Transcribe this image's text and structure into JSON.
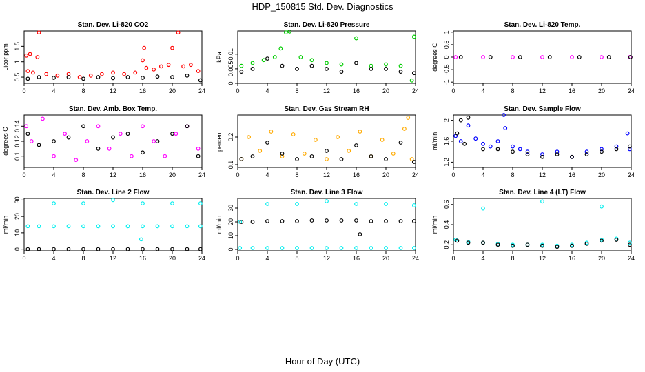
{
  "title": "HDP_150815  Std. Dev. Diagnostics",
  "xlabel": "Hour of Day (UTC)",
  "colors": {
    "co2": "#ff0000",
    "pressure": "#00cc00",
    "temp": "#ff00ff",
    "rh": "#ffaa00",
    "flow": "#0000ff",
    "line": "#00eeee",
    "primary": "#000000"
  },
  "chart_data": [
    {
      "type": "scatter",
      "title": "Stan. Dev. Li-820 CO2",
      "ylabel": "Licor ppm",
      "xlim": [
        0,
        24
      ],
      "ylim": [
        0.3,
        2.0
      ],
      "xticks": [
        0,
        4,
        8,
        12,
        16,
        20,
        24
      ],
      "yticks": [
        0.5,
        1.0,
        1.5
      ],
      "series": [
        {
          "color": "#ff0000",
          "x": [
            0.3,
            0.5,
            0.8,
            1.2,
            1.8,
            2.0,
            3.0,
            4.5,
            6.0,
            7.5,
            9.0,
            10.5,
            12.0,
            13.5,
            15.0,
            16.0,
            16.2,
            16.5,
            17.5,
            18.5,
            19.5,
            20.0,
            20.8,
            21.5,
            22.5,
            23.5
          ],
          "y": [
            1.2,
            0.7,
            1.25,
            0.65,
            1.15,
            1.95,
            0.6,
            0.55,
            0.6,
            0.5,
            0.55,
            0.6,
            0.65,
            0.6,
            0.65,
            1.05,
            1.45,
            0.8,
            0.75,
            0.85,
            0.9,
            1.45,
            1.95,
            0.85,
            0.9,
            0.7
          ]
        },
        {
          "color": "#000000",
          "x": [
            0.5,
            2.0,
            4.0,
            6.0,
            8.0,
            10.0,
            12.0,
            14.0,
            16.0,
            18.0,
            20.0,
            22.0,
            23.8
          ],
          "y": [
            0.45,
            0.5,
            0.48,
            0.5,
            0.45,
            0.5,
            0.47,
            0.5,
            0.48,
            0.52,
            0.5,
            0.55,
            0.4
          ]
        }
      ]
    },
    {
      "type": "scatter",
      "title": "Stan. Dev. Li-820 Pressure",
      "ylabel": "kPa",
      "xlim": [
        0,
        24
      ],
      "ylim": [
        0,
        0.018
      ],
      "xticks": [
        0,
        4,
        8,
        12,
        16,
        20,
        24
      ],
      "yticks": [
        0.0,
        0.005,
        0.01
      ],
      "series": [
        {
          "color": "#00cc00",
          "x": [
            0.5,
            2.0,
            3.5,
            5.0,
            5.8,
            6.5,
            7.0,
            8.5,
            10.0,
            12.0,
            14.0,
            16.0,
            18.0,
            20.0,
            22.0,
            23.5,
            23.8
          ],
          "y": [
            0.006,
            0.007,
            0.008,
            0.009,
            0.012,
            0.0175,
            0.0178,
            0.009,
            0.008,
            0.007,
            0.0065,
            0.0155,
            0.006,
            0.0065,
            0.006,
            0.001,
            0.016
          ]
        },
        {
          "color": "#000000",
          "x": [
            0.5,
            2.0,
            4.0,
            6.0,
            8.0,
            10.0,
            12.0,
            14.0,
            16.0,
            18.0,
            20.0,
            22.0,
            23.8
          ],
          "y": [
            0.004,
            0.005,
            0.0085,
            0.006,
            0.005,
            0.006,
            0.005,
            0.004,
            0.007,
            0.005,
            0.005,
            0.004,
            0.0035
          ]
        }
      ]
    },
    {
      "type": "scatter",
      "title": "Stan. Dev. Li-820 Temp.",
      "ylabel": "degrees C",
      "xlim": [
        0,
        24
      ],
      "ylim": [
        -1.05,
        1.05
      ],
      "xticks": [
        0,
        4,
        8,
        12,
        16,
        20,
        24
      ],
      "yticks": [
        -1.0,
        -0.5,
        0.0,
        0.5,
        1.0
      ],
      "series": [
        {
          "color": "#ff00ff",
          "x": [
            0.3,
            4.0,
            8.0,
            12.0,
            16.0,
            20.0,
            23.8
          ],
          "y": [
            0,
            0,
            0,
            0,
            0,
            0,
            0
          ]
        },
        {
          "color": "#000000",
          "x": [
            1.0,
            5.0,
            9.0,
            13.0,
            17.0,
            21.0,
            23.9
          ],
          "y": [
            0,
            0,
            0,
            0,
            0,
            0,
            0
          ]
        }
      ]
    },
    {
      "type": "scatter",
      "title": "Stan. Dev. Amb. Box Temp.",
      "ylabel": "degrees C",
      "xlim": [
        0,
        24
      ],
      "ylim": [
        0.085,
        0.155
      ],
      "xticks": [
        0,
        4,
        8,
        12,
        16,
        20,
        24
      ],
      "yticks": [
        0.1,
        0.12,
        0.14
      ],
      "series": [
        {
          "color": "#ff00ff",
          "x": [
            0.3,
            1.0,
            2.5,
            4.0,
            5.5,
            7.0,
            8.5,
            10.0,
            11.5,
            13.0,
            14.5,
            16.0,
            17.5,
            19.0,
            20.5,
            22.0,
            23.5
          ],
          "y": [
            0.14,
            0.12,
            0.15,
            0.1,
            0.13,
            0.095,
            0.12,
            0.14,
            0.11,
            0.13,
            0.1,
            0.14,
            0.12,
            0.1,
            0.13,
            0.14,
            0.11
          ]
        },
        {
          "color": "#000000",
          "x": [
            0.5,
            2.0,
            4.0,
            6.0,
            8.0,
            10.0,
            12.0,
            14.0,
            16.0,
            18.0,
            20.0,
            22.0,
            23.5
          ],
          "y": [
            0.13,
            0.115,
            0.12,
            0.125,
            0.14,
            0.11,
            0.125,
            0.13,
            0.105,
            0.12,
            0.13,
            0.14,
            0.1
          ]
        }
      ]
    },
    {
      "type": "scatter",
      "title": "Stan. Dev. Gas Stream RH",
      "ylabel": "percent",
      "xlim": [
        0,
        24
      ],
      "ylim": [
        0.09,
        0.28
      ],
      "xticks": [
        0,
        4,
        8,
        12,
        16,
        20,
        24
      ],
      "yticks": [
        0.1,
        0.2
      ],
      "series": [
        {
          "color": "#ffaa00",
          "x": [
            0.5,
            1.5,
            3.0,
            4.5,
            6.0,
            7.5,
            9.0,
            10.5,
            12.0,
            13.5,
            15.0,
            16.5,
            18.0,
            19.5,
            21.0,
            22.5,
            23.5,
            23.0
          ],
          "y": [
            0.12,
            0.2,
            0.15,
            0.22,
            0.13,
            0.21,
            0.14,
            0.19,
            0.12,
            0.2,
            0.15,
            0.22,
            0.13,
            0.19,
            0.14,
            0.23,
            0.12,
            0.27
          ]
        },
        {
          "color": "#000000",
          "x": [
            0.5,
            2.0,
            4.0,
            6.0,
            8.0,
            10.0,
            12.0,
            14.0,
            16.0,
            18.0,
            20.0,
            22.0,
            23.8
          ],
          "y": [
            0.12,
            0.13,
            0.18,
            0.14,
            0.12,
            0.13,
            0.15,
            0.12,
            0.17,
            0.13,
            0.12,
            0.18,
            0.11
          ]
        }
      ]
    },
    {
      "type": "scatter",
      "title": "Stan. Dev. Sample Flow",
      "ylabel": "ml/min",
      "xlim": [
        0,
        24
      ],
      "ylim": [
        1.1,
        2.1
      ],
      "xticks": [
        0,
        4,
        8,
        12,
        16,
        20,
        24
      ],
      "yticks": [
        1.2,
        1.6,
        2.0
      ],
      "series": [
        {
          "color": "#0000ff",
          "x": [
            0.3,
            1.0,
            2.0,
            3.0,
            4.0,
            5.0,
            6.0,
            6.8,
            7.0,
            8.0,
            9.0,
            10.0,
            12.0,
            14.0,
            16.0,
            18.0,
            20.0,
            22.0,
            23.5,
            23.8
          ],
          "y": [
            1.7,
            1.6,
            1.9,
            1.65,
            1.55,
            1.5,
            1.6,
            2.1,
            1.85,
            1.5,
            1.45,
            1.4,
            1.35,
            1.4,
            1.3,
            1.4,
            1.45,
            1.5,
            1.75,
            1.45
          ]
        },
        {
          "color": "#000000",
          "x": [
            0.5,
            1.0,
            1.5,
            2.0,
            4.0,
            6.0,
            8.0,
            10.0,
            12.0,
            14.0,
            16.0,
            18.0,
            20.0,
            22.0,
            23.8
          ],
          "y": [
            1.75,
            2.0,
            1.55,
            2.05,
            1.45,
            1.45,
            1.4,
            1.35,
            1.3,
            1.35,
            1.3,
            1.35,
            1.4,
            1.45,
            1.5
          ]
        }
      ]
    },
    {
      "type": "scatter",
      "title": "Stan. Dev. Line 2 Flow",
      "ylabel": "ml/min",
      "xlim": [
        0,
        24
      ],
      "ylim": [
        -1,
        31
      ],
      "xticks": [
        0,
        4,
        8,
        12,
        16,
        20,
        24
      ],
      "yticks": [
        0,
        10,
        20,
        30
      ],
      "series": [
        {
          "color": "#00eeee",
          "x": [
            0.5,
            2.0,
            4.0,
            6.0,
            8.0,
            10.0,
            12.0,
            14.0,
            15.8,
            16.0,
            18.0,
            20.0,
            22.0,
            23.8,
            4.0,
            8.0,
            12.0,
            16.0,
            20.0,
            23.8
          ],
          "y": [
            14,
            14,
            14,
            14,
            14,
            14,
            14,
            14,
            6,
            14,
            14,
            14,
            14,
            14,
            28,
            28,
            30,
            28,
            28,
            28
          ]
        },
        {
          "color": "#000000",
          "x": [
            0.5,
            2.0,
            4.0,
            6.0,
            8.0,
            10.0,
            12.0,
            14.0,
            16.0,
            18.0,
            20.0,
            22.0,
            23.8
          ],
          "y": [
            0,
            0,
            0,
            0,
            0,
            0,
            0,
            0,
            0,
            0,
            0,
            0,
            0
          ]
        }
      ]
    },
    {
      "type": "scatter",
      "title": "Stan. Dev. Line 3 Flow",
      "ylabel": "ml/min",
      "xlim": [
        0,
        24
      ],
      "ylim": [
        -1,
        37
      ],
      "xticks": [
        0,
        4,
        8,
        12,
        16,
        20,
        24
      ],
      "yticks": [
        0,
        10,
        20,
        30
      ],
      "series": [
        {
          "color": "#00eeee",
          "x": [
            0.3,
            2.0,
            4.0,
            6.0,
            8.0,
            10.0,
            12.0,
            14.0,
            16.0,
            18.0,
            20.0,
            22.0,
            23.8,
            0.3,
            4.0,
            8.0,
            12.0,
            16.0,
            20.0,
            23.8
          ],
          "y": [
            1,
            1,
            1,
            1,
            1,
            1,
            1,
            1,
            1,
            1,
            1,
            1,
            1,
            20,
            33,
            33,
            35,
            33,
            33,
            32
          ]
        },
        {
          "color": "#000000",
          "x": [
            0.5,
            2.0,
            4.0,
            6.0,
            8.0,
            10.0,
            12.0,
            14.0,
            16.0,
            16.5,
            18.0,
            20.0,
            22.0,
            23.8
          ],
          "y": [
            20,
            20,
            20.5,
            20.5,
            20.5,
            21,
            21,
            21,
            21,
            11,
            20.5,
            20.5,
            20.5,
            20.5
          ]
        }
      ]
    },
    {
      "type": "scatter",
      "title": "Stan. Dev. Line 4 (LT) Flow",
      "ylabel": "ml/min",
      "xlim": [
        0,
        24
      ],
      "ylim": [
        0.14,
        0.66
      ],
      "xticks": [
        0,
        4,
        8,
        12,
        16,
        20,
        24
      ],
      "yticks": [
        0.2,
        0.4,
        0.6
      ],
      "series": [
        {
          "color": "#00eeee",
          "x": [
            0.3,
            2.0,
            4.0,
            6.0,
            8.0,
            10.0,
            12.0,
            14.0,
            16.0,
            18.0,
            20.0,
            22.0,
            23.8,
            4.0,
            12.0,
            20.0
          ],
          "y": [
            0.25,
            0.23,
            0.22,
            0.21,
            0.2,
            0.2,
            0.2,
            0.19,
            0.2,
            0.22,
            0.25,
            0.26,
            0.22,
            0.56,
            0.63,
            0.58
          ]
        },
        {
          "color": "#000000",
          "x": [
            0.5,
            2.0,
            4.0,
            6.0,
            8.0,
            10.0,
            12.0,
            14.0,
            16.0,
            18.0,
            20.0,
            22.0,
            23.8
          ],
          "y": [
            0.24,
            0.22,
            0.22,
            0.2,
            0.19,
            0.2,
            0.19,
            0.18,
            0.19,
            0.21,
            0.24,
            0.25,
            0.2
          ]
        }
      ]
    }
  ]
}
